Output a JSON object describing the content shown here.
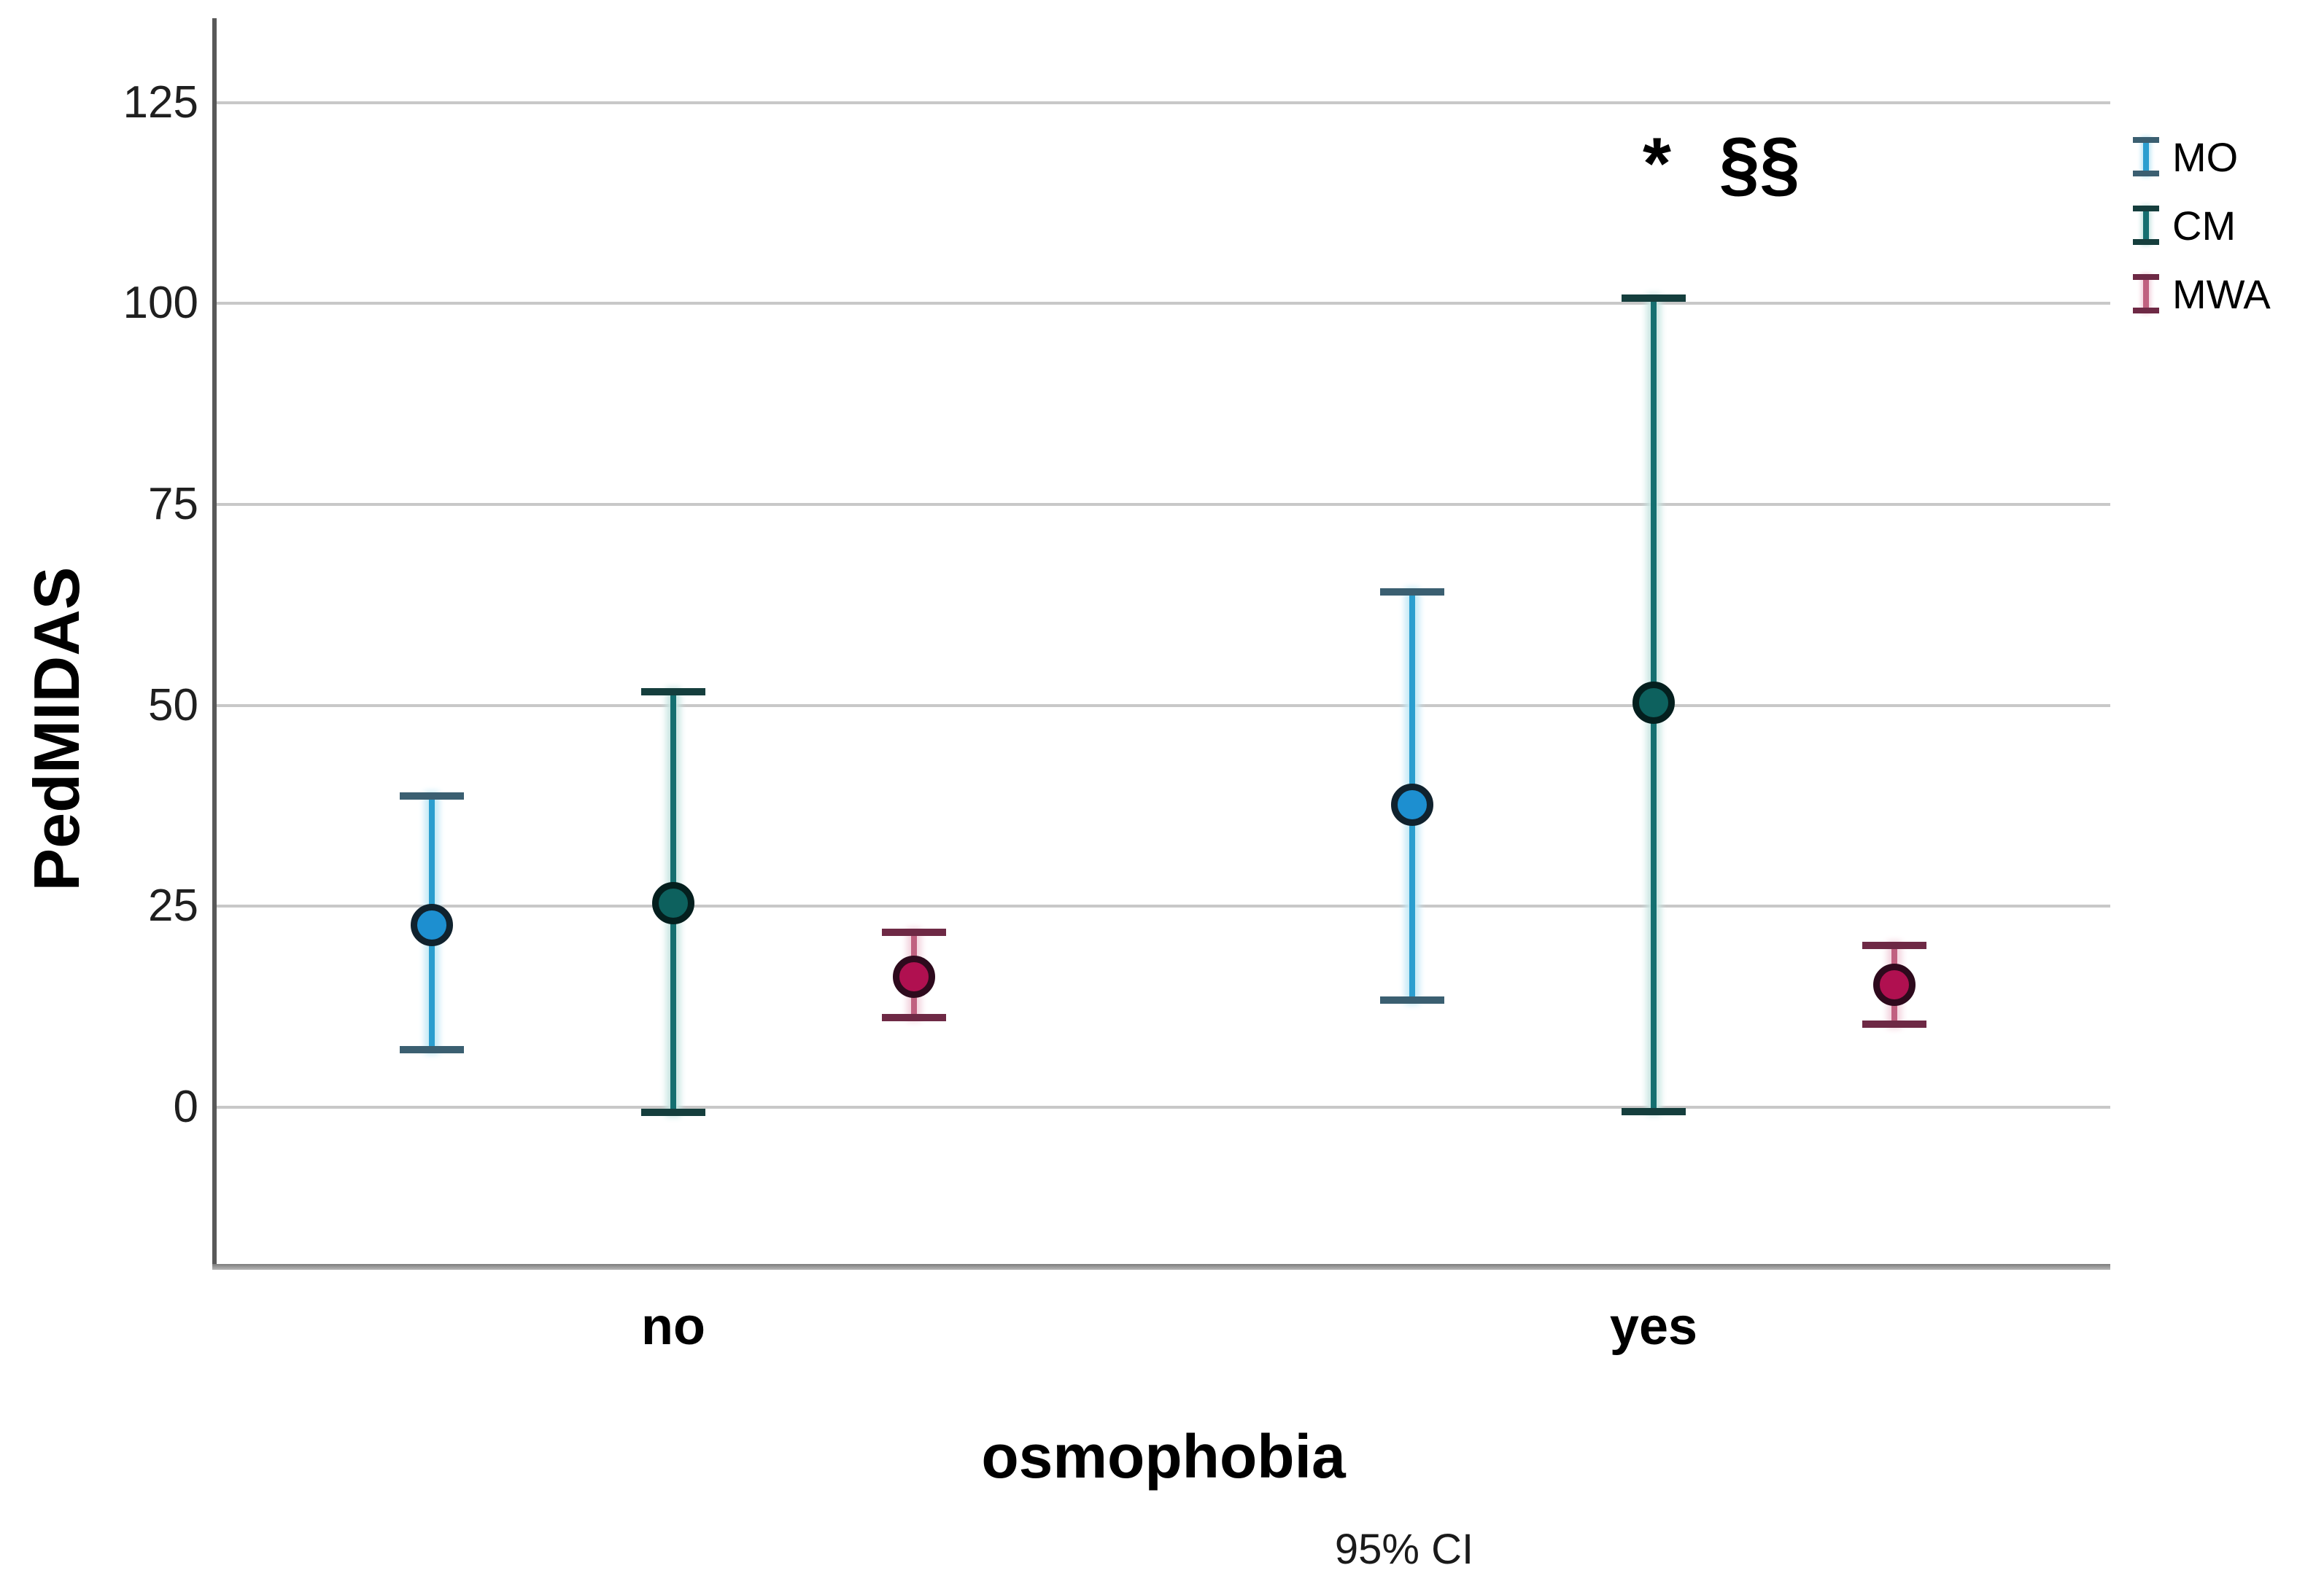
{
  "chart_data": {
    "type": "errorbar",
    "title": "",
    "ylabel": "PedMIDAS",
    "xlabel": "osmophobia",
    "caption": "95% CI",
    "annotation": "* §§",
    "categories": [
      "no",
      "yes"
    ],
    "yticks": [
      0,
      25,
      50,
      75,
      100,
      125
    ],
    "ylim": [
      -19.5,
      135.5
    ],
    "grid": "horizontal",
    "legend_position": "top-right",
    "error_bar_meaning": "95% confidence interval",
    "series": [
      {
        "name": "MO",
        "color": "#2b9ecf",
        "glow": "#c3e9f6",
        "dot_color": "#1d8fd0",
        "ring_color": "#10222e",
        "cap_color": "#3b5f71",
        "points": [
          {
            "category": "no",
            "mean": 22.7,
            "ci_low": 7.2,
            "ci_high": 38.7
          },
          {
            "category": "yes",
            "mean": 37.6,
            "ci_low": 13.3,
            "ci_high": 64.1
          }
        ]
      },
      {
        "name": "CM",
        "color": "#156f70",
        "glow": "#c9e6e3",
        "dot_color": "#0d615e",
        "ring_color": "#041f1e",
        "cap_color": "#153e3d",
        "points": [
          {
            "category": "no",
            "mean": 25.4,
            "ci_low": -0.6,
            "ci_high": 51.7
          },
          {
            "category": "yes",
            "mean": 50.3,
            "ci_low": -0.5,
            "ci_high": 100.7
          }
        ]
      },
      {
        "name": "MWA",
        "color": "#c06180",
        "glow": "#f3d3de",
        "dot_color": "#b01050",
        "ring_color": "#2e0a1d",
        "cap_color": "#6e2945",
        "points": [
          {
            "category": "no",
            "mean": 16.2,
            "ci_low": 11.2,
            "ci_high": 21.8
          },
          {
            "category": "yes",
            "mean": 15.2,
            "ci_low": 10.3,
            "ci_high": 20.1
          }
        ]
      }
    ]
  },
  "legend": {
    "entries": [
      {
        "label": "MO"
      },
      {
        "label": "CM"
      },
      {
        "label": "MWA"
      }
    ]
  }
}
